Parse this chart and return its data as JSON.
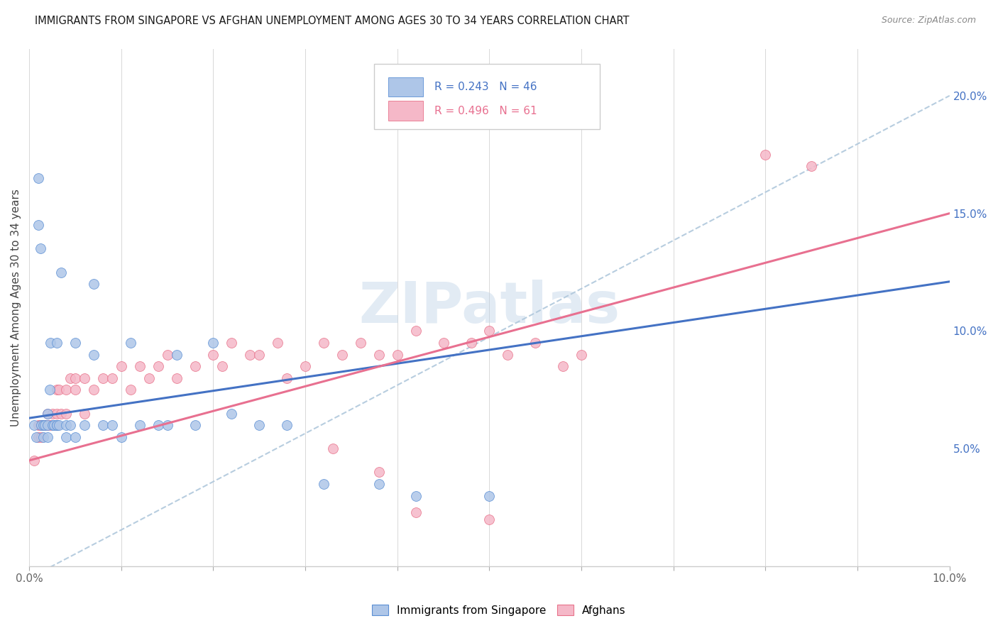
{
  "title": "IMMIGRANTS FROM SINGAPORE VS AFGHAN UNEMPLOYMENT AMONG AGES 30 TO 34 YEARS CORRELATION CHART",
  "source": "Source: ZipAtlas.com",
  "ylabel": "Unemployment Among Ages 30 to 34 years",
  "xlim": [
    0.0,
    0.1
  ],
  "ylim": [
    0.0,
    0.22
  ],
  "xtick_positions": [
    0.0,
    0.01,
    0.02,
    0.03,
    0.04,
    0.05,
    0.06,
    0.07,
    0.08,
    0.09,
    0.1
  ],
  "xtick_labels": [
    "0.0%",
    "",
    "",
    "",
    "",
    "",
    "",
    "",
    "",
    "",
    "10.0%"
  ],
  "yticks_right": [
    0.05,
    0.1,
    0.15,
    0.2
  ],
  "ytick_labels_right": [
    "5.0%",
    "10.0%",
    "15.0%",
    "20.0%"
  ],
  "background_color": "#ffffff",
  "grid_color": "#d8d8d8",
  "singapore_fill_color": "#aec6e8",
  "singapore_edge_color": "#5b8fd4",
  "afghan_fill_color": "#f5b8c8",
  "afghan_edge_color": "#e8728a",
  "singapore_line_color": "#4472c4",
  "afghan_line_color": "#e87090",
  "dashed_line_color": "#b0c8dc",
  "legend_R_singapore": "0.243",
  "legend_N_singapore": "46",
  "legend_R_afghan": "0.496",
  "legend_N_afghan": "61",
  "singapore_slope": 0.58,
  "singapore_intercept": 0.063,
  "afghan_slope": 1.05,
  "afghan_intercept": 0.045,
  "dashed_slope": 2.05,
  "dashed_intercept": -0.005,
  "singapore_x": [
    0.0005,
    0.0008,
    0.001,
    0.001,
    0.0012,
    0.0013,
    0.0015,
    0.0015,
    0.0017,
    0.002,
    0.002,
    0.002,
    0.0022,
    0.0023,
    0.0025,
    0.0027,
    0.003,
    0.003,
    0.003,
    0.0032,
    0.0035,
    0.004,
    0.004,
    0.0045,
    0.005,
    0.005,
    0.006,
    0.007,
    0.007,
    0.008,
    0.009,
    0.01,
    0.011,
    0.012,
    0.014,
    0.015,
    0.016,
    0.018,
    0.02,
    0.022,
    0.025,
    0.028,
    0.032,
    0.038,
    0.042,
    0.05
  ],
  "singapore_y": [
    0.06,
    0.055,
    0.165,
    0.145,
    0.135,
    0.06,
    0.06,
    0.055,
    0.06,
    0.055,
    0.06,
    0.065,
    0.075,
    0.095,
    0.06,
    0.06,
    0.095,
    0.06,
    0.06,
    0.06,
    0.125,
    0.06,
    0.055,
    0.06,
    0.095,
    0.055,
    0.06,
    0.09,
    0.12,
    0.06,
    0.06,
    0.055,
    0.095,
    0.06,
    0.06,
    0.06,
    0.09,
    0.06,
    0.095,
    0.065,
    0.06,
    0.06,
    0.035,
    0.035,
    0.03,
    0.03
  ],
  "afghan_x": [
    0.0005,
    0.001,
    0.001,
    0.0012,
    0.0013,
    0.0015,
    0.0017,
    0.002,
    0.002,
    0.0023,
    0.0025,
    0.003,
    0.003,
    0.003,
    0.0032,
    0.0035,
    0.004,
    0.004,
    0.0045,
    0.005,
    0.005,
    0.006,
    0.006,
    0.007,
    0.008,
    0.009,
    0.01,
    0.011,
    0.012,
    0.013,
    0.014,
    0.015,
    0.016,
    0.018,
    0.02,
    0.021,
    0.022,
    0.024,
    0.025,
    0.027,
    0.028,
    0.03,
    0.032,
    0.034,
    0.036,
    0.038,
    0.04,
    0.042,
    0.045,
    0.048,
    0.05,
    0.052,
    0.055,
    0.058,
    0.06,
    0.033,
    0.038,
    0.042,
    0.05,
    0.08,
    0.085
  ],
  "afghan_y": [
    0.045,
    0.06,
    0.055,
    0.06,
    0.055,
    0.06,
    0.06,
    0.065,
    0.06,
    0.06,
    0.065,
    0.075,
    0.065,
    0.06,
    0.075,
    0.065,
    0.075,
    0.065,
    0.08,
    0.08,
    0.075,
    0.08,
    0.065,
    0.075,
    0.08,
    0.08,
    0.085,
    0.075,
    0.085,
    0.08,
    0.085,
    0.09,
    0.08,
    0.085,
    0.09,
    0.085,
    0.095,
    0.09,
    0.09,
    0.095,
    0.08,
    0.085,
    0.095,
    0.09,
    0.095,
    0.09,
    0.09,
    0.1,
    0.095,
    0.095,
    0.1,
    0.09,
    0.095,
    0.085,
    0.09,
    0.05,
    0.04,
    0.023,
    0.02,
    0.175,
    0.17
  ],
  "watermark_text": "ZIPatlas",
  "watermark_color": "#c0d4e8",
  "watermark_alpha": 0.45
}
